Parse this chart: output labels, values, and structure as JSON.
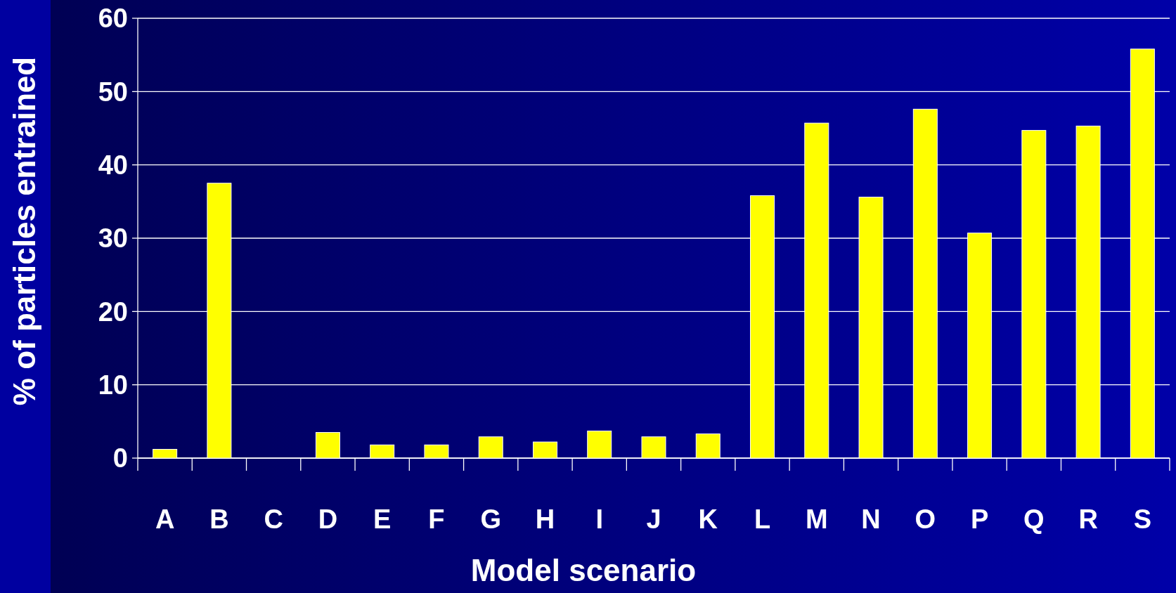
{
  "chart_data": {
    "type": "bar",
    "xlabel": "Model scenario",
    "ylabel": "% of particles entrained",
    "categories": [
      "A",
      "B",
      "C",
      "D",
      "E",
      "F",
      "G",
      "H",
      "I",
      "J",
      "K",
      "L",
      "M",
      "N",
      "O",
      "P",
      "Q",
      "R",
      "S"
    ],
    "values": [
      1.2,
      37.5,
      0,
      3.5,
      1.8,
      1.8,
      2.9,
      2.2,
      3.7,
      2.9,
      3.3,
      35.8,
      45.7,
      35.6,
      47.6,
      30.7,
      44.7,
      45.3,
      55.8
    ],
    "color": "#ffff00",
    "ylim": [
      0,
      60
    ],
    "yticks": [
      0,
      10,
      20,
      30,
      40,
      50,
      60
    ],
    "grid": "y"
  }
}
